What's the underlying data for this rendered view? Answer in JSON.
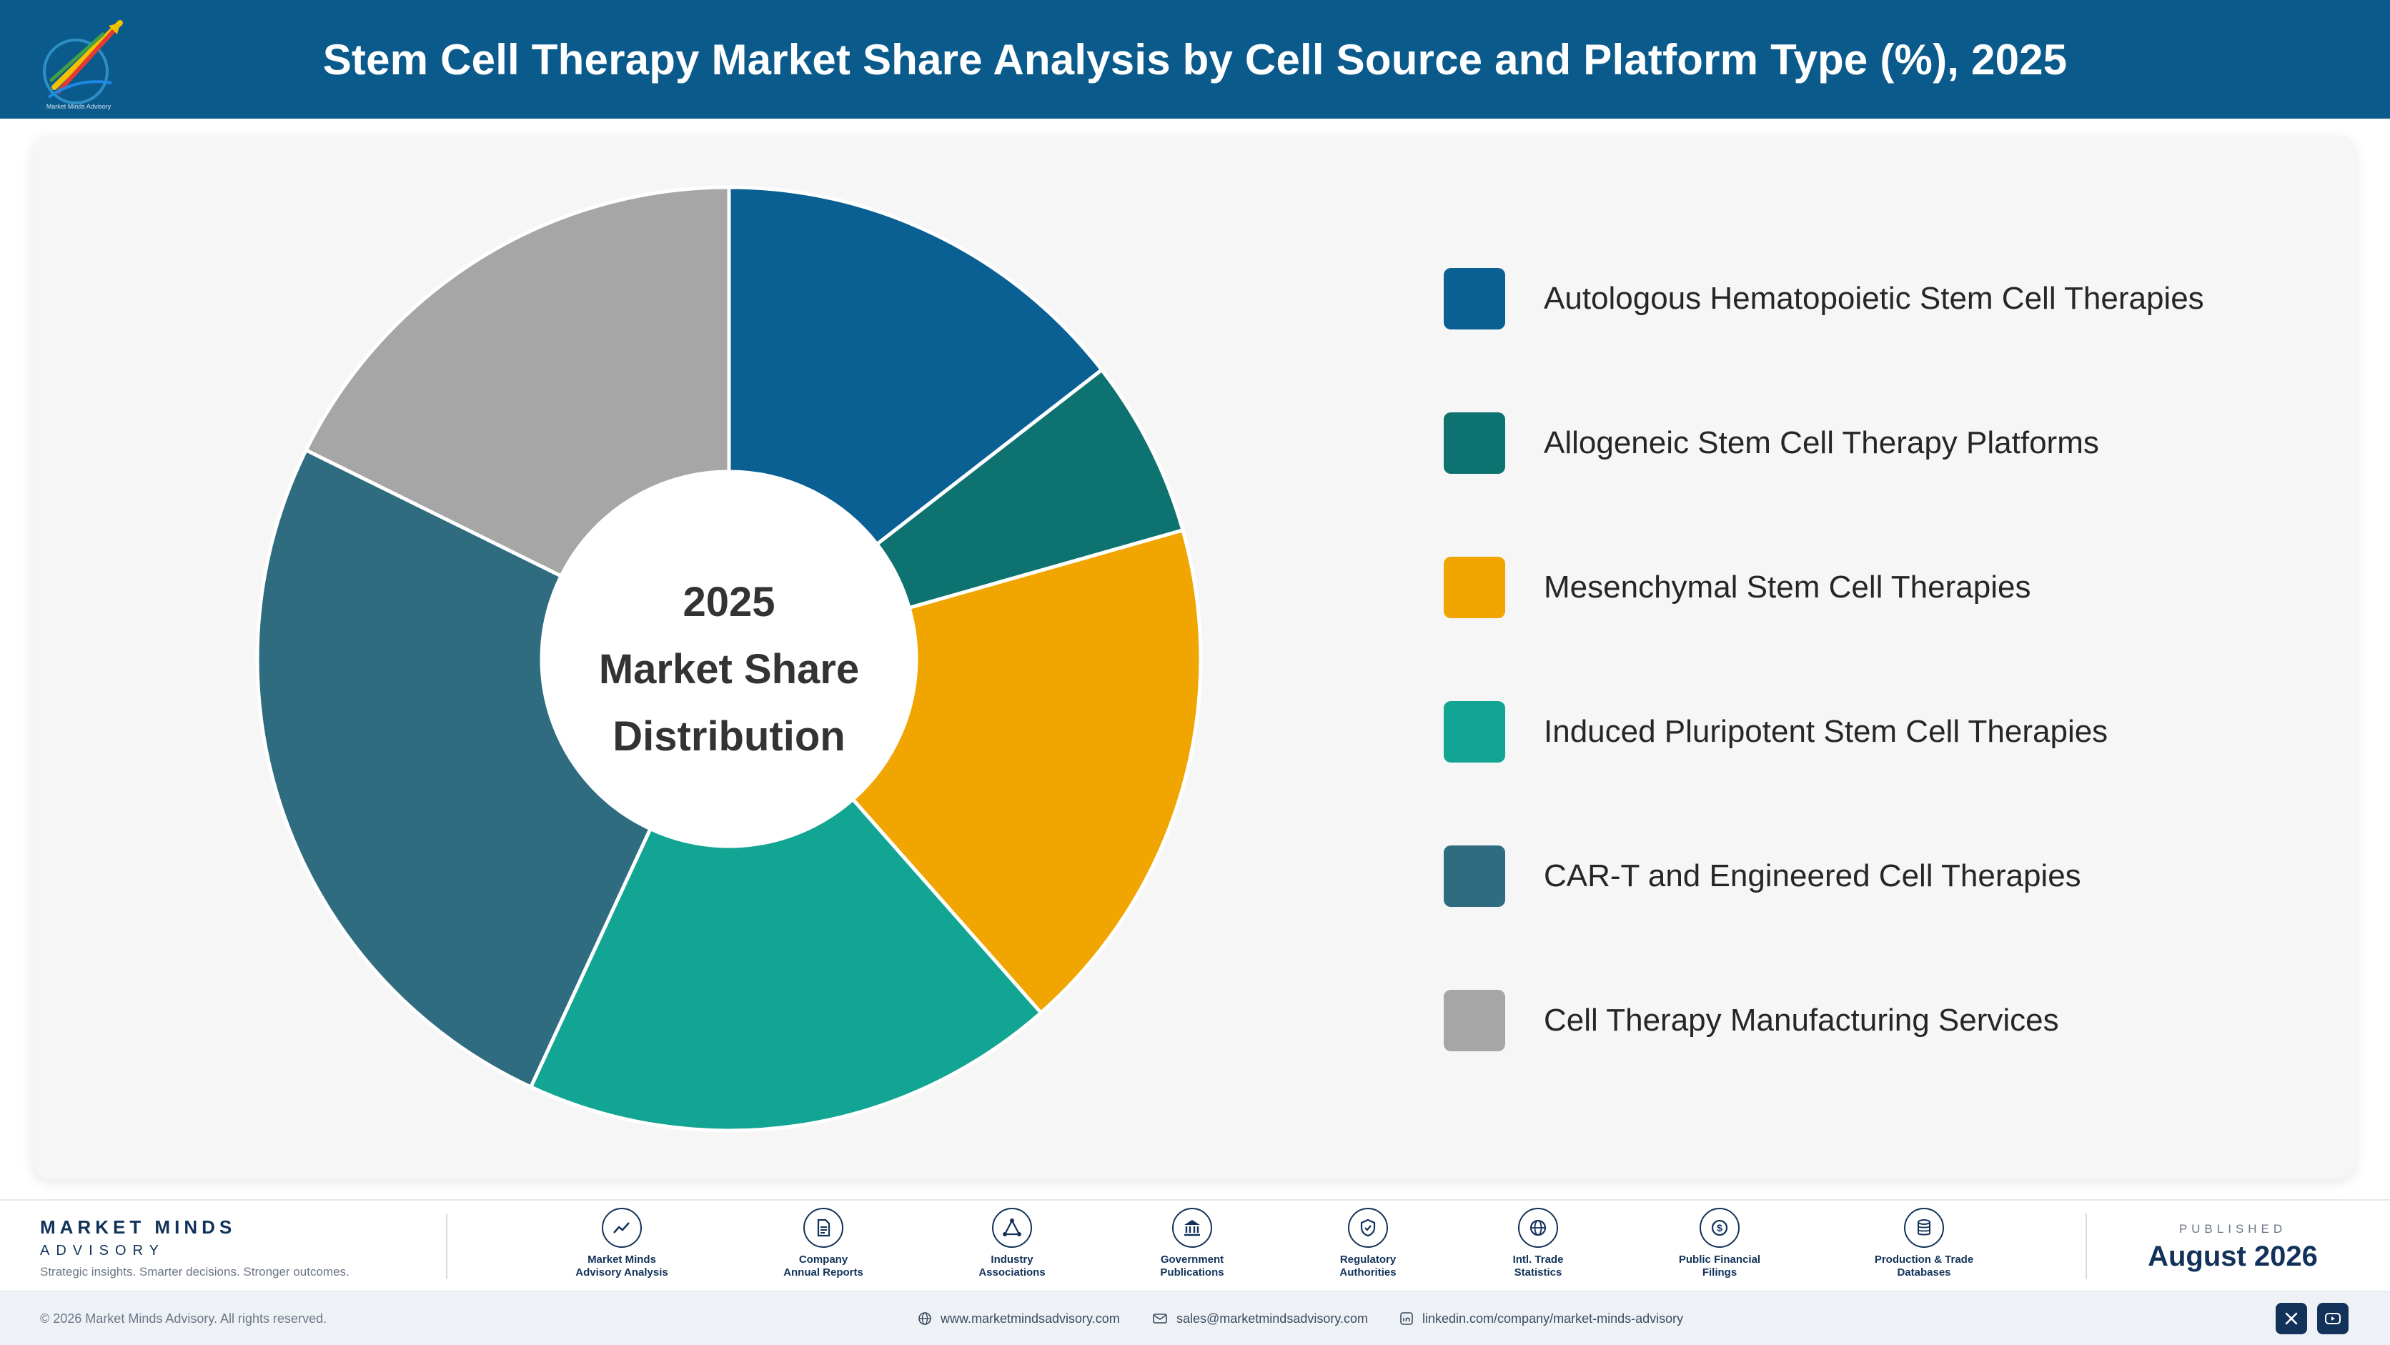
{
  "header": {
    "title": "Stem Cell Therapy Market Share Analysis by Cell Source and Platform Type (%), 2025",
    "logo_text": "Market Minds Advisory"
  },
  "chart_data": {
    "type": "pie",
    "donut": true,
    "center_label": [
      "2025",
      "Market Share",
      "Distribution"
    ],
    "categories": [
      "Autologous Hematopoietic Stem Cell Therapies",
      "Allogeneic Stem Cell Therapy Platforms",
      "Mesenchymal Stem Cell Therapies",
      "Induced Pluripotent Stem Cell Therapies",
      "CAR-T and Engineered Cell Therapies",
      "Cell Therapy Manufacturing Services"
    ],
    "values": [
      14.5,
      6.1,
      17.9,
      18.4,
      25.4,
      17.7
    ],
    "colors": [
      "#0a5f93",
      "#0e7370",
      "#f0a500",
      "#13a593",
      "#2f6c80",
      "#a6a6a6"
    ],
    "legend_position": "right"
  },
  "footer": {
    "brand_name": "MARKET MINDS",
    "brand_sub": "ADVISORY",
    "tagline": "Strategic insights. Smarter decisions. Stronger outcomes.",
    "sources": [
      {
        "line1": "Market Minds",
        "line2": "Advisory Analysis",
        "icon": "trend-chart-icon"
      },
      {
        "line1": "Company",
        "line2": "Annual Reports",
        "icon": "document-icon"
      },
      {
        "line1": "Industry",
        "line2": "Associations",
        "icon": "network-icon"
      },
      {
        "line1": "Government",
        "line2": "Publications",
        "icon": "government-building-icon"
      },
      {
        "line1": "Regulatory",
        "line2": "Authorities",
        "icon": "shield-check-icon"
      },
      {
        "line1": "Intl. Trade",
        "line2": "Statistics",
        "icon": "globe-icon"
      },
      {
        "line1": "Public Financial",
        "line2": "Filings",
        "icon": "dollar-coin-icon"
      },
      {
        "line1": "Production & Trade",
        "line2": "Databases",
        "icon": "database-icon"
      }
    ],
    "published_label": "PUBLISHED",
    "published_date": "August 2026"
  },
  "bottom_bar": {
    "copyright": "© 2026 Market Minds Advisory. All rights reserved.",
    "website": "www.marketmindsadvisory.com",
    "email": "sales@marketmindsadvisory.com",
    "linkedin": "linkedin.com/company/market-minds-advisory",
    "social": [
      "x-icon",
      "youtube-icon"
    ]
  }
}
